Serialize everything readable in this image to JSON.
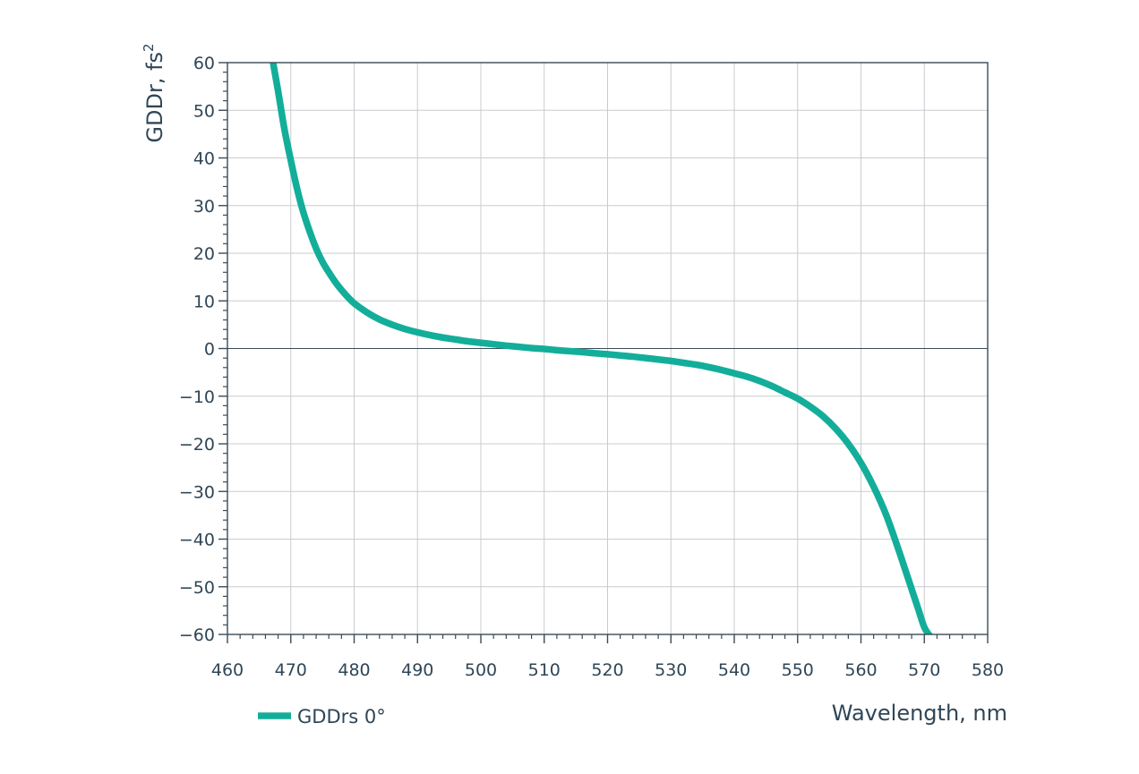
{
  "chart_data": {
    "type": "line",
    "xlabel": "Wavelength, nm",
    "ylabel": "GDDr, fs",
    "ylabel_superscript": "2",
    "xlim": [
      460,
      580
    ],
    "ylim": [
      -60,
      60
    ],
    "x_ticks": [
      460,
      470,
      480,
      490,
      500,
      510,
      520,
      530,
      540,
      550,
      560,
      570,
      580
    ],
    "y_ticks": [
      60,
      50,
      40,
      30,
      20,
      10,
      0,
      -10,
      -20,
      -30,
      -40,
      -50,
      -60
    ],
    "grid": true,
    "legend_position": "bottom-left",
    "series": [
      {
        "name": "GDDrs 0°",
        "color": "#13ae9a",
        "x": [
          467.2,
          468,
          469,
          470,
          471,
          472,
          473,
          474,
          475,
          476,
          477,
          478,
          479,
          480,
          482,
          484,
          486,
          488,
          490,
          492,
          494,
          496,
          498,
          500,
          502,
          504,
          506,
          508,
          510,
          512,
          514,
          516,
          518,
          520,
          522,
          524,
          526,
          528,
          530,
          532,
          534,
          536,
          538,
          540,
          542,
          544,
          546,
          548,
          550,
          552,
          554,
          556,
          558,
          560,
          562,
          564,
          566,
          567,
          568,
          569,
          570,
          571,
          572,
          572.4
        ],
        "y": [
          60,
          54,
          46,
          39.5,
          33.5,
          28.5,
          24.5,
          21,
          18.2,
          16,
          14,
          12.3,
          10.8,
          9.5,
          7.6,
          6.1,
          5,
          4.1,
          3.4,
          2.8,
          2.3,
          1.9,
          1.5,
          1.2,
          0.9,
          0.6,
          0.35,
          0.1,
          -0.1,
          -0.35,
          -0.55,
          -0.75,
          -1,
          -1.2,
          -1.45,
          -1.7,
          -2,
          -2.3,
          -2.6,
          -3,
          -3.4,
          -3.9,
          -4.5,
          -5.2,
          -5.9,
          -6.8,
          -7.9,
          -9.2,
          -10.5,
          -12.2,
          -14.2,
          -16.8,
          -20,
          -24,
          -29,
          -35,
          -42.5,
          -46.5,
          -50.5,
          -54.5,
          -58.5,
          -60.5,
          -62,
          -62.5
        ]
      }
    ]
  }
}
